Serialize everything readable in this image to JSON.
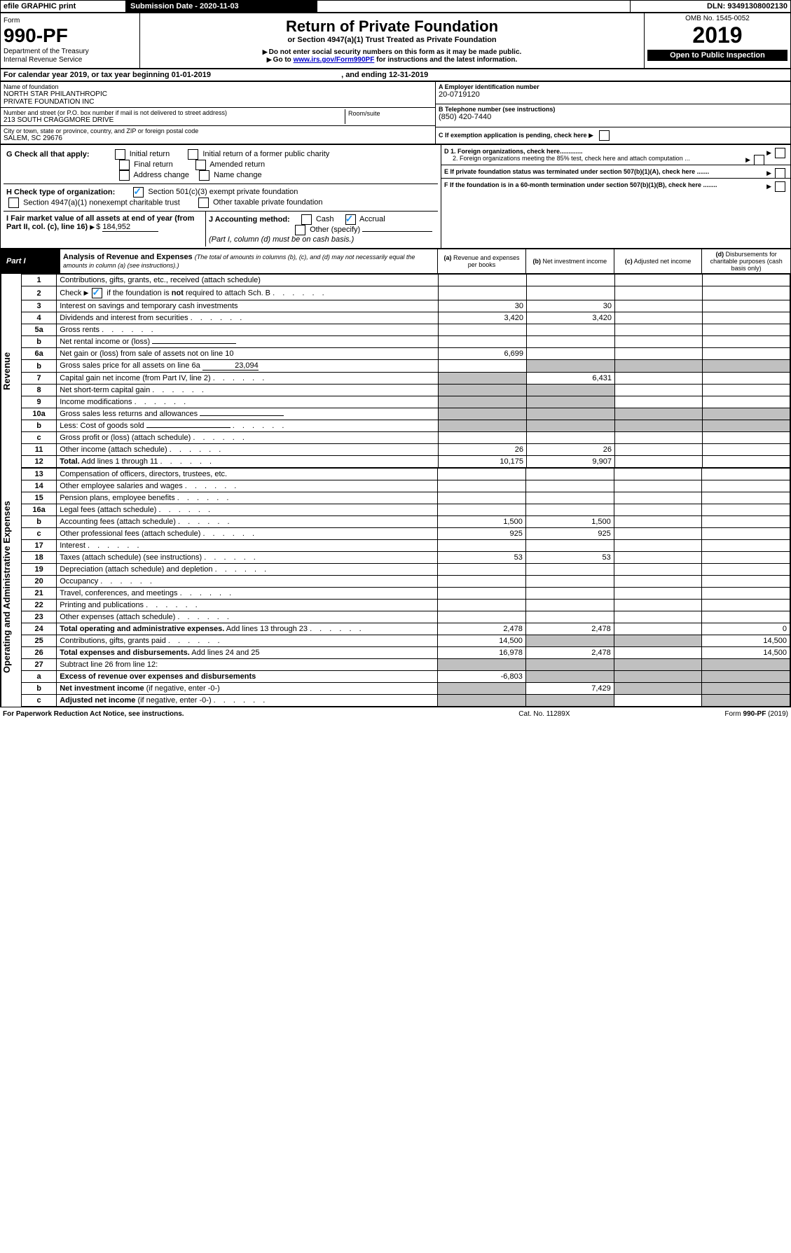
{
  "top_bar": {
    "efile": "efile GRAPHIC print",
    "sub_date_label": "Submission Date - 2020-11-03",
    "dln": "DLN: 93491308002130"
  },
  "header": {
    "form_label": "Form",
    "form_no": "990-PF",
    "dept": "Department of the Treasury",
    "irs": "Internal Revenue Service",
    "title": "Return of Private Foundation",
    "subtitle": "or Section 4947(a)(1) Trust Treated as Private Foundation",
    "warn1": "Do not enter social security numbers on this form as it may be made public.",
    "warn2": "Go to",
    "warn2_link": "www.irs.gov/Form990PF",
    "warn2_rest": "for instructions and the latest information.",
    "omb": "OMB No. 1545-0052",
    "year": "2019",
    "open": "Open to Public Inspection"
  },
  "period": {
    "label": "For calendar year 2019, or tax year beginning",
    "begin": "01-01-2019",
    "mid": ", and ending",
    "end": "12-31-2019"
  },
  "ident": {
    "name_label": "Name of foundation",
    "name": "NORTH STAR PHILANTHROPIC\nPRIVATE FOUNDATION INC",
    "addr_label": "Number and street (or P.O. box number if mail is not delivered to street address)",
    "addr": "213 SOUTH CRAGGMORE DRIVE",
    "room_label": "Room/suite",
    "city_label": "City or town, state or province, country, and ZIP or foreign postal code",
    "city": "SALEM, SC  29676",
    "ein_label": "A Employer identification number",
    "ein": "20-0719120",
    "tel_label": "B Telephone number (see instructions)",
    "tel": "(850) 420-7440",
    "c": "C If exemption application is pending, check here",
    "d1": "D 1. Foreign organizations, check here.............",
    "d2": "2. Foreign organizations meeting the 85% test, check here and attach computation ...",
    "e": "E  If private foundation status was terminated under section 507(b)(1)(A), check here .......",
    "f": "F  If the foundation is in a 60-month termination under section 507(b)(1)(B), check here ........"
  },
  "g": {
    "label": "G Check all that apply:",
    "opts": [
      "Initial return",
      "Initial return of a former public charity",
      "Final return",
      "Amended return",
      "Address change",
      "Name change"
    ]
  },
  "h": {
    "label": "H Check type of organization:",
    "opts": [
      "Section 501(c)(3) exempt private foundation",
      "Section 4947(a)(1) nonexempt charitable trust",
      "Other taxable private foundation"
    ]
  },
  "i": {
    "label": "I Fair market value of all assets at end of year (from Part II, col. (c), line 16)",
    "value": "184,952"
  },
  "j": {
    "label": "J Accounting method:",
    "opts": [
      "Cash",
      "Accrual"
    ],
    "other": "Other (specify)",
    "note": "(Part I, column (d) must be on cash basis.)"
  },
  "part1": {
    "label": "Part I",
    "title": "Analysis of Revenue and Expenses",
    "title_note": "(The total of amounts in columns (b), (c), and (d) may not necessarily equal the amounts in column (a) (see instructions).)",
    "cols": {
      "a": "Revenue and expenses per books",
      "b": "Net investment income",
      "c": "Adjusted net income",
      "d": "Disbursements for charitable purposes (cash basis only)"
    }
  },
  "revenue_label": "Revenue",
  "expenses_label": "Operating and Administrative Expenses",
  "rows": [
    {
      "n": "1",
      "t": "Contributions, gifts, grants, etc., received (attach schedule)",
      "a": "",
      "b": "",
      "c": "",
      "d": ""
    },
    {
      "n": "2",
      "t": "Check",
      "t2": "if the foundation is",
      "t2b": "not",
      "t2c": "required to attach Sch. B",
      "check": true,
      "dots": true
    },
    {
      "n": "3",
      "t": "Interest on savings and temporary cash investments",
      "a": "30",
      "b": "30"
    },
    {
      "n": "4",
      "t": "Dividends and interest from securities",
      "a": "3,420",
      "b": "3,420",
      "dots": true
    },
    {
      "n": "5a",
      "t": "Gross rents",
      "dots": true
    },
    {
      "n": "b",
      "t": "Net rental income or (loss)",
      "input": true
    },
    {
      "n": "6a",
      "t": "Net gain or (loss) from sale of assets not on line 10",
      "a": "6,699"
    },
    {
      "n": "b",
      "t": "Gross sales price for all assets on line 6a",
      "inline_val": "23,094",
      "grey_bcd": true
    },
    {
      "n": "7",
      "t": "Capital gain net income (from Part IV, line 2)",
      "b": "6,431",
      "dots": true,
      "grey_a": true
    },
    {
      "n": "8",
      "t": "Net short-term capital gain",
      "dots": true,
      "grey_ab": true
    },
    {
      "n": "9",
      "t": "Income modifications",
      "dots": true,
      "grey_ab": true
    },
    {
      "n": "10a",
      "t": "Gross sales less returns and allowances",
      "input": true,
      "grey_all": true
    },
    {
      "n": "b",
      "t": "Less: Cost of goods sold",
      "input": true,
      "dots": true,
      "grey_all": true
    },
    {
      "n": "c",
      "t": "Gross profit or (loss) (attach schedule)",
      "dots": true,
      "grey_bcd": false
    },
    {
      "n": "11",
      "t": "Other income (attach schedule)",
      "a": "26",
      "b": "26",
      "dots": true
    },
    {
      "n": "12",
      "t": "Total.",
      "t2": "Add lines 1 through 11",
      "a": "10,175",
      "b": "9,907",
      "bold": true,
      "dots": true
    }
  ],
  "exp_rows": [
    {
      "n": "13",
      "t": "Compensation of officers, directors, trustees, etc."
    },
    {
      "n": "14",
      "t": "Other employee salaries and wages",
      "dots": true
    },
    {
      "n": "15",
      "t": "Pension plans, employee benefits",
      "dots": true
    },
    {
      "n": "16a",
      "t": "Legal fees (attach schedule)",
      "dots": true
    },
    {
      "n": "b",
      "t": "Accounting fees (attach schedule)",
      "a": "1,500",
      "b": "1,500",
      "dots": true
    },
    {
      "n": "c",
      "t": "Other professional fees (attach schedule)",
      "a": "925",
      "b": "925",
      "dots": true
    },
    {
      "n": "17",
      "t": "Interest",
      "dots": true
    },
    {
      "n": "18",
      "t": "Taxes (attach schedule) (see instructions)",
      "a": "53",
      "b": "53",
      "dots": true
    },
    {
      "n": "19",
      "t": "Depreciation (attach schedule) and depletion",
      "dots": true
    },
    {
      "n": "20",
      "t": "Occupancy",
      "dots": true
    },
    {
      "n": "21",
      "t": "Travel, conferences, and meetings",
      "dots": true
    },
    {
      "n": "22",
      "t": "Printing and publications",
      "dots": true
    },
    {
      "n": "23",
      "t": "Other expenses (attach schedule)",
      "dots": true
    },
    {
      "n": "24",
      "t": "Total operating and administrative expenses.",
      "t2": "Add lines 13 through 23",
      "a": "2,478",
      "b": "2,478",
      "d": "0",
      "bold": true,
      "dots": true
    },
    {
      "n": "25",
      "t": "Contributions, gifts, grants paid",
      "a": "14,500",
      "d": "14,500",
      "dots": true,
      "grey_bc": true
    },
    {
      "n": "26",
      "t": "Total expenses and disbursements.",
      "t2": "Add lines 24 and 25",
      "a": "16,978",
      "b": "2,478",
      "d": "14,500",
      "bold": true
    },
    {
      "n": "27",
      "t": "Subtract line 26 from line 12:",
      "grey_all": true
    },
    {
      "n": "a",
      "t": "Excess of revenue over expenses and disbursements",
      "a": "-6,803",
      "bold": true,
      "grey_bcd": true
    },
    {
      "n": "b",
      "t": "Net investment income",
      "t2": "(if negative, enter -0-)",
      "b": "7,429",
      "bold": true,
      "grey_acd": true
    },
    {
      "n": "c",
      "t": "Adjusted net income",
      "t2": "(if negative, enter -0-)",
      "bold": true,
      "dots": true,
      "grey_abd": true
    }
  ],
  "footer": {
    "left": "For Paperwork Reduction Act Notice, see instructions.",
    "mid": "Cat. No. 11289X",
    "right": "Form",
    "right_b": "990-PF",
    "right_y": "(2019)"
  }
}
